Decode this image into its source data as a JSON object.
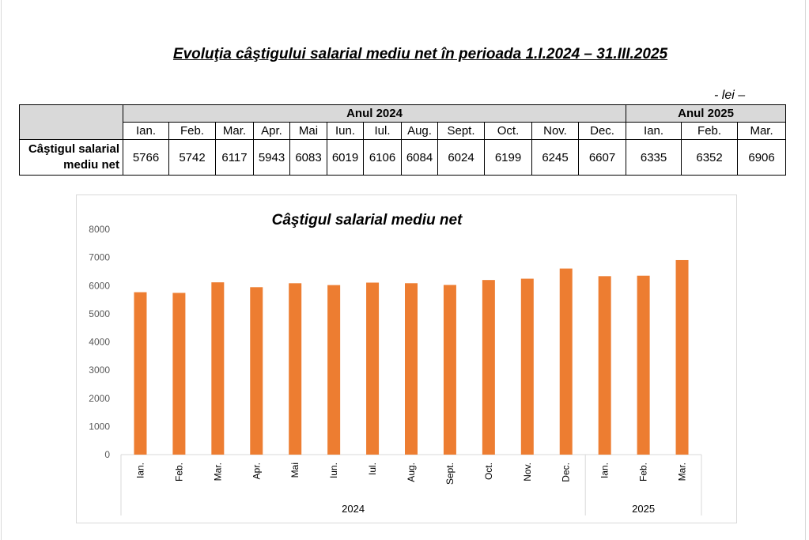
{
  "document": {
    "title": "Evoluţia câştigului salarial mediu net în perioada 1.I.2024 – 31.III.2025",
    "unit_note": "- lei –"
  },
  "table": {
    "years": [
      {
        "label": "Anul 2024",
        "months": [
          "Ian.",
          "Feb.",
          "Mar.",
          "Apr.",
          "Mai",
          "Iun.",
          "Iul.",
          "Aug.",
          "Sept.",
          "Oct.",
          "Nov.",
          "Dec."
        ]
      },
      {
        "label": "Anul 2025",
        "months": [
          "Ian.",
          "Feb.",
          "Mar."
        ]
      }
    ],
    "row_label_line1": "Câştigul salarial",
    "row_label_line2": "mediu net",
    "values": [
      "5766",
      "5742",
      "6117",
      "5943",
      "6083",
      "6019",
      "6106",
      "6084",
      "6024",
      "6199",
      "6245",
      "6607",
      "6335",
      "6352",
      "6906"
    ]
  },
  "chart_data": {
    "type": "bar",
    "title": "Câştigul salarial mediu net",
    "categories": [
      "Ian.",
      "Feb.",
      "Mar.",
      "Apr.",
      "Mai",
      "Iun.",
      "Iul.",
      "Aug.",
      "Sept.",
      "Oct.",
      "Nov.",
      "Dec.",
      "Ian.",
      "Feb.",
      "Mar."
    ],
    "groups": [
      {
        "label": "2024",
        "count": 12
      },
      {
        "label": "2025",
        "count": 3
      }
    ],
    "values": [
      5766,
      5742,
      6117,
      5943,
      6083,
      6019,
      6106,
      6084,
      6024,
      6199,
      6245,
      6607,
      6335,
      6352,
      6906
    ],
    "ylim": [
      0,
      8000
    ],
    "yticks": [
      0,
      1000,
      2000,
      3000,
      4000,
      5000,
      6000,
      7000,
      8000
    ],
    "xlabel": "",
    "ylabel": "",
    "grid": false,
    "legend": "none",
    "bar_color": "#ED7D31",
    "axis_color": "#d9d9d9",
    "label_color": "#595959"
  }
}
